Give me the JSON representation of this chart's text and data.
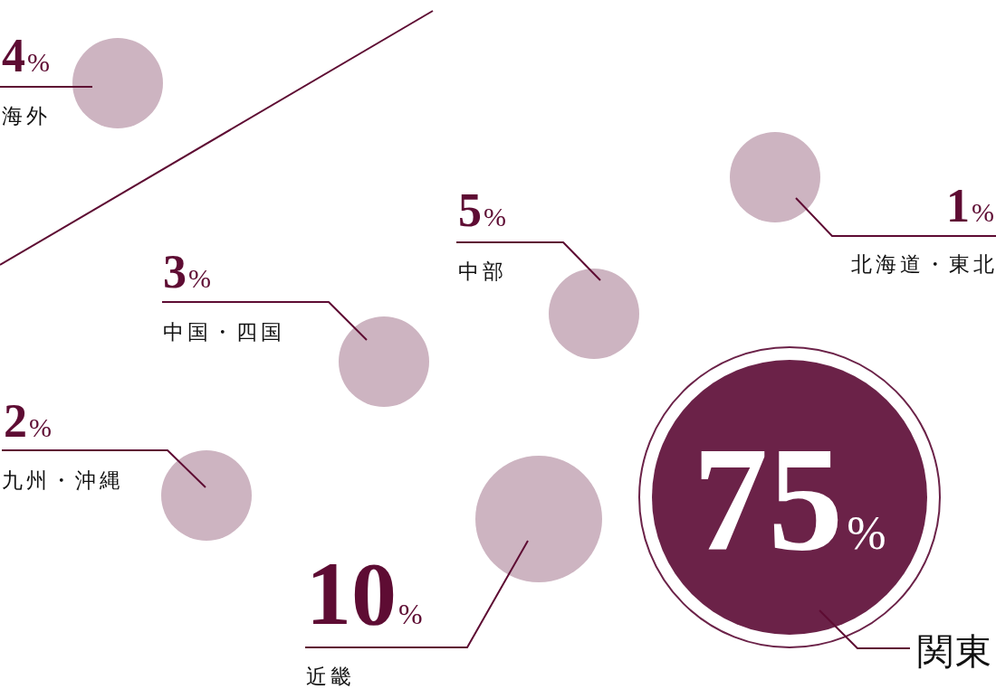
{
  "chart_data": {
    "type": "other",
    "categories": [
      "海外",
      "北海道・東北",
      "中部",
      "中国・四国",
      "九州・沖縄",
      "近畿",
      "関東"
    ],
    "values": [
      4,
      1,
      5,
      3,
      2,
      10,
      75
    ],
    "value_labels": [
      "4%",
      "1%",
      "5%",
      "3%",
      "2%",
      "10%",
      "75%"
    ],
    "colors": [
      "#cdb4c1",
      "#cdb4c1",
      "#cdb4c1",
      "#cdb4c1",
      "#cdb4c1",
      "#cdb4c1",
      "#6b2248"
    ]
  }
}
